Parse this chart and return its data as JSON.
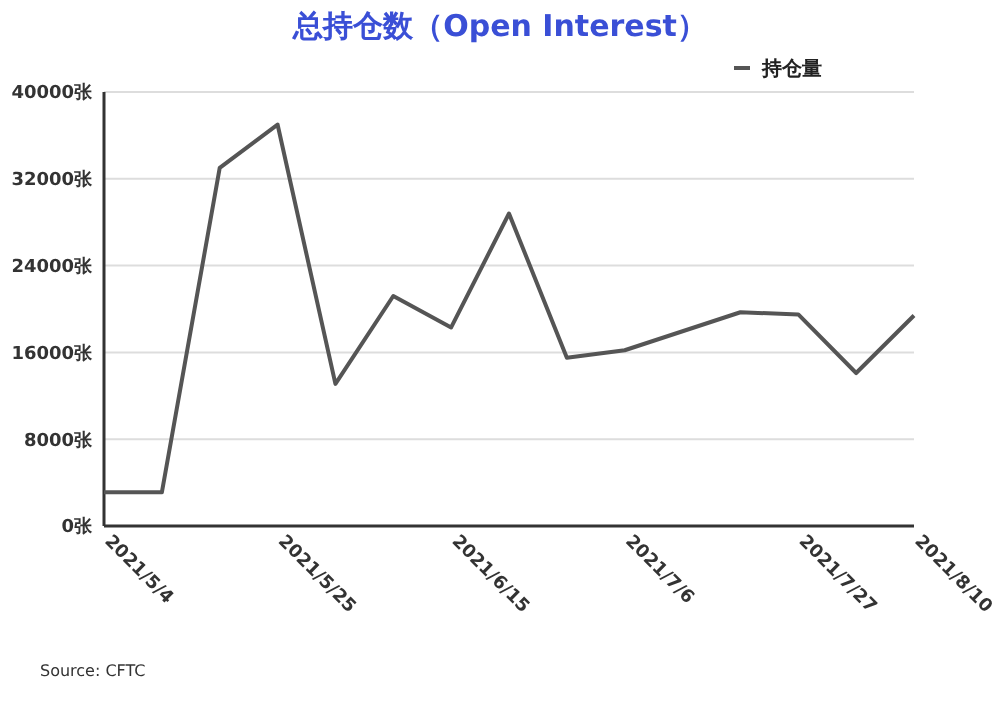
{
  "chart_data": {
    "type": "line",
    "title": "总持仓数（Open Interest）",
    "x": [
      "2021-05-04",
      "2021-05-11",
      "2021-05-18",
      "2021-05-25",
      "2021-06-01",
      "2021-06-08",
      "2021-06-15",
      "2021-06-22",
      "2021-06-29",
      "2021-07-06",
      "2021-07-20",
      "2021-07-27",
      "2021-08-03",
      "2021-08-10"
    ],
    "series": [
      {
        "name": "持仓量",
        "color": "#555555",
        "values": [
          3100,
          3100,
          33000,
          37000,
          13100,
          21200,
          18300,
          28800,
          15500,
          16200,
          19700,
          19500,
          14100,
          19400
        ]
      }
    ],
    "xlim": [
      "2021-05-04",
      "2021-08-10"
    ],
    "xticks": [
      {
        "value": "2021-05-04",
        "label": "2021/5/4"
      },
      {
        "value": "2021-05-25",
        "label": "2021/5/25"
      },
      {
        "value": "2021-06-15",
        "label": "2021/6/15"
      },
      {
        "value": "2021-07-06",
        "label": "2021/7/6"
      },
      {
        "value": "2021-07-27",
        "label": "2021/7/27"
      },
      {
        "value": "2021-08-10",
        "label": "2021/8/10"
      }
    ],
    "ylim": [
      0,
      40000
    ],
    "yticks": [
      {
        "value": 0,
        "label": "0张"
      },
      {
        "value": 8000,
        "label": "8000张"
      },
      {
        "value": 16000,
        "label": "16000张"
      },
      {
        "value": 24000,
        "label": "24000张"
      },
      {
        "value": 32000,
        "label": "32000张"
      },
      {
        "value": 40000,
        "label": "40000张"
      }
    ],
    "grid": "y",
    "legend": "top right",
    "line_style": "solid",
    "marker": "none",
    "annotations": [
      "Source: CFTC"
    ]
  }
}
